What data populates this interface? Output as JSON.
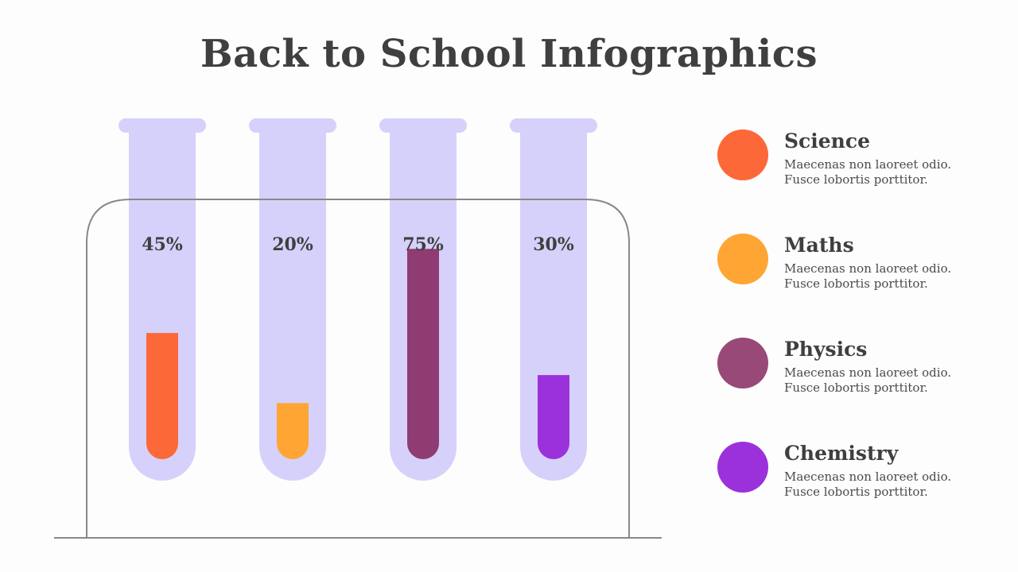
{
  "title": "Back to School Infographics",
  "chart_data": {
    "type": "bar",
    "categories": [
      "Science",
      "Maths",
      "Physics",
      "Chemistry"
    ],
    "values": [
      45,
      20,
      75,
      30
    ],
    "value_labels": [
      "45%",
      "20%",
      "75%",
      "30%"
    ],
    "ylim": [
      0,
      100
    ],
    "colors": [
      "#fc6838",
      "#fea534",
      "#8f3c72",
      "#9b31db"
    ],
    "tube_color": "#d6d1fa",
    "rack_color": "#888888"
  },
  "legend": [
    {
      "name": "Science",
      "color": "#fc6838",
      "line1": "Maecenas non laoreet odio.",
      "line2": "Fusce lobortis porttitor."
    },
    {
      "name": "Maths",
      "color": "#fea534",
      "line1": "Maecenas non laoreet odio.",
      "line2": "Fusce lobortis porttitor."
    },
    {
      "name": "Physics",
      "color": "#984977",
      "line1": "Maecenas non laoreet odio.",
      "line2": "Fusce lobortis porttitor."
    },
    {
      "name": "Chemistry",
      "color": "#9b31db",
      "line1": "Maecenas non laoreet odio.",
      "line2": "Fusce lobortis porttitor."
    }
  ]
}
